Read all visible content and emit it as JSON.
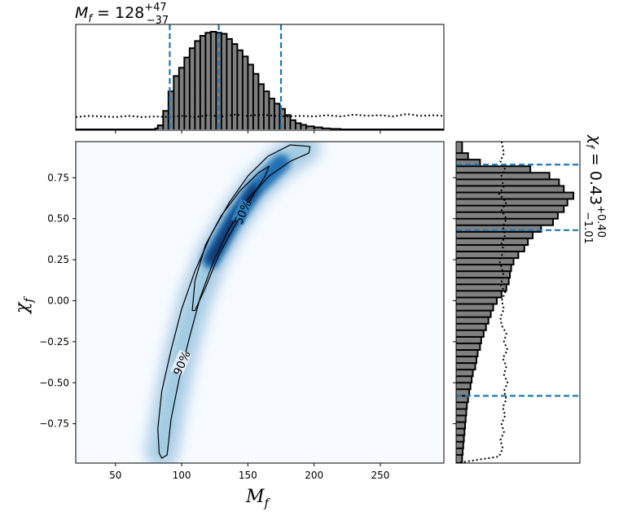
{
  "chart_data": [
    {
      "panel": "top-marginal",
      "type": "histogram",
      "title": {
        "symbol": "M",
        "sub": "f",
        "eq": " = 128",
        "sup": "+47",
        "low": "−37"
      },
      "xlim": [
        20,
        298
      ],
      "bins": [
        [
          80,
          82,
          0.01
        ],
        [
          82,
          86,
          0.04
        ],
        [
          86,
          90,
          0.18
        ],
        [
          90,
          94,
          0.37
        ],
        [
          94,
          98,
          0.52
        ],
        [
          98,
          102,
          0.6
        ],
        [
          102,
          106,
          0.7
        ],
        [
          106,
          110,
          0.79
        ],
        [
          110,
          114,
          0.86
        ],
        [
          114,
          118,
          0.91
        ],
        [
          118,
          122,
          0.94
        ],
        [
          122,
          126,
          0.95
        ],
        [
          126,
          130,
          0.94
        ],
        [
          130,
          134,
          0.93
        ],
        [
          134,
          138,
          0.88
        ],
        [
          138,
          142,
          0.83
        ],
        [
          142,
          146,
          0.77
        ],
        [
          146,
          150,
          0.71
        ],
        [
          150,
          154,
          0.63
        ],
        [
          154,
          158,
          0.54
        ],
        [
          158,
          162,
          0.44
        ],
        [
          162,
          166,
          0.37
        ],
        [
          166,
          170,
          0.3
        ],
        [
          170,
          174,
          0.25
        ],
        [
          174,
          178,
          0.2
        ],
        [
          178,
          182,
          0.14
        ],
        [
          182,
          186,
          0.09
        ],
        [
          186,
          190,
          0.06
        ],
        [
          190,
          194,
          0.045
        ],
        [
          194,
          200,
          0.03
        ],
        [
          200,
          206,
          0.02
        ],
        [
          206,
          212,
          0.01
        ],
        [
          212,
          220,
          0.005
        ]
      ],
      "prior": [
        [
          20,
          0.2
        ],
        [
          30,
          0.22
        ],
        [
          40,
          0.21
        ],
        [
          50,
          0.2
        ],
        [
          60,
          0.22
        ],
        [
          70,
          0.2
        ],
        [
          80,
          0.21
        ],
        [
          90,
          0.2
        ],
        [
          100,
          0.22
        ],
        [
          110,
          0.2
        ],
        [
          120,
          0.23
        ],
        [
          130,
          0.21
        ],
        [
          140,
          0.24
        ],
        [
          150,
          0.22
        ],
        [
          160,
          0.24
        ],
        [
          170,
          0.22
        ],
        [
          180,
          0.21
        ],
        [
          190,
          0.22
        ],
        [
          200,
          0.21
        ],
        [
          210,
          0.23
        ],
        [
          220,
          0.21
        ],
        [
          230,
          0.24
        ],
        [
          240,
          0.22
        ],
        [
          250,
          0.23
        ],
        [
          260,
          0.21
        ],
        [
          270,
          0.25
        ],
        [
          280,
          0.22
        ],
        [
          290,
          0.23
        ],
        [
          298,
          0.22
        ]
      ],
      "vlines": [
        91,
        128,
        175
      ],
      "line_color": "#1f77b4",
      "fill_color": "#808080"
    },
    {
      "panel": "joint",
      "type": "heatmap",
      "xlabel": {
        "symbol": "M",
        "sub": "f"
      },
      "ylabel": {
        "symbol": "χ",
        "sub": "f"
      },
      "xlim": [
        20,
        298
      ],
      "ylim": [
        -0.99,
        0.97
      ],
      "xticks": [
        50,
        100,
        150,
        200,
        250
      ],
      "yticks": [
        "−0.75",
        "−0.50",
        "−0.25",
        "0.00",
        "0.25",
        "0.50",
        "0.75"
      ],
      "ytick_values": [
        -0.75,
        -0.5,
        -0.25,
        0.0,
        0.25,
        0.5,
        0.75
      ],
      "colormap": "Blues",
      "ridge": [
        [
          85,
          -0.92
        ],
        [
          92,
          -0.6
        ],
        [
          100,
          -0.3
        ],
        [
          110,
          0.0
        ],
        [
          122,
          0.25
        ],
        [
          138,
          0.48
        ],
        [
          155,
          0.68
        ],
        [
          175,
          0.84
        ],
        [
          192,
          0.93
        ]
      ],
      "contours": [
        {
          "label": "90%",
          "label_at": [
            100,
            -0.38
          ],
          "points": [
            [
              83,
              -0.93
            ],
            [
              82,
              -0.78
            ],
            [
              85,
              -0.55
            ],
            [
              92,
              -0.3
            ],
            [
              100,
              -0.05
            ],
            [
              110,
              0.18
            ],
            [
              122,
              0.4
            ],
            [
              136,
              0.6
            ],
            [
              150,
              0.76
            ],
            [
              165,
              0.88
            ],
            [
              182,
              0.95
            ],
            [
              197,
              0.94
            ],
            [
              196,
              0.9
            ],
            [
              182,
              0.85
            ],
            [
              166,
              0.76
            ],
            [
              150,
              0.62
            ],
            [
              136,
              0.44
            ],
            [
              124,
              0.24
            ],
            [
              114,
              0.02
            ],
            [
              106,
              -0.22
            ],
            [
              98,
              -0.48
            ],
            [
              92,
              -0.72
            ],
            [
              89,
              -0.94
            ],
            [
              85,
              -0.96
            ]
          ]
        },
        {
          "label": "50%",
          "label_at": [
            146,
            0.54
          ],
          "points": [
            [
              108,
              -0.06
            ],
            [
              110,
              0.12
            ],
            [
              118,
              0.34
            ],
            [
              130,
              0.52
            ],
            [
              144,
              0.67
            ],
            [
              158,
              0.78
            ],
            [
              166,
              0.82
            ],
            [
              163,
              0.76
            ],
            [
              153,
              0.63
            ],
            [
              141,
              0.47
            ],
            [
              128,
              0.28
            ],
            [
              118,
              0.08
            ],
            [
              110,
              -0.06
            ]
          ]
        }
      ]
    },
    {
      "panel": "right-marginal",
      "type": "histogram",
      "title": {
        "symbol": "χ",
        "sub": "f",
        "eq": " = 0.43",
        "sup": "+0.40",
        "low": "−1.01"
      },
      "ylim": [
        -0.99,
        0.97
      ],
      "bins": [
        [
          0.9,
          0.97,
          0.05
        ],
        [
          0.86,
          0.9,
          0.1
        ],
        [
          0.82,
          0.86,
          0.2
        ],
        [
          0.78,
          0.82,
          0.62
        ],
        [
          0.74,
          0.78,
          0.78
        ],
        [
          0.7,
          0.74,
          0.86
        ],
        [
          0.66,
          0.7,
          0.9
        ],
        [
          0.62,
          0.66,
          0.98
        ],
        [
          0.58,
          0.62,
          0.93
        ],
        [
          0.54,
          0.58,
          0.9
        ],
        [
          0.5,
          0.54,
          0.85
        ],
        [
          0.46,
          0.5,
          0.81
        ],
        [
          0.42,
          0.46,
          0.71
        ],
        [
          0.38,
          0.42,
          0.64
        ],
        [
          0.34,
          0.38,
          0.6
        ],
        [
          0.3,
          0.34,
          0.57
        ],
        [
          0.26,
          0.3,
          0.52
        ],
        [
          0.22,
          0.26,
          0.48
        ],
        [
          0.18,
          0.22,
          0.46
        ],
        [
          0.14,
          0.18,
          0.45
        ],
        [
          0.1,
          0.14,
          0.44
        ],
        [
          0.06,
          0.1,
          0.42
        ],
        [
          0.02,
          0.06,
          0.38
        ],
        [
          -0.02,
          0.02,
          0.34
        ],
        [
          -0.06,
          -0.02,
          0.31
        ],
        [
          -0.1,
          -0.06,
          0.29
        ],
        [
          -0.14,
          -0.1,
          0.27
        ],
        [
          -0.18,
          -0.14,
          0.25
        ],
        [
          -0.22,
          -0.18,
          0.23
        ],
        [
          -0.26,
          -0.22,
          0.21
        ],
        [
          -0.3,
          -0.26,
          0.2
        ],
        [
          -0.34,
          -0.3,
          0.18
        ],
        [
          -0.38,
          -0.34,
          0.17
        ],
        [
          -0.42,
          -0.38,
          0.16
        ],
        [
          -0.46,
          -0.42,
          0.14
        ],
        [
          -0.5,
          -0.46,
          0.13
        ],
        [
          -0.54,
          -0.5,
          0.12
        ],
        [
          -0.58,
          -0.54,
          0.11
        ],
        [
          -0.62,
          -0.58,
          0.1
        ],
        [
          -0.66,
          -0.62,
          0.09
        ],
        [
          -0.7,
          -0.66,
          0.085
        ],
        [
          -0.74,
          -0.7,
          0.08
        ],
        [
          -0.78,
          -0.74,
          0.075
        ],
        [
          -0.82,
          -0.78,
          0.07
        ],
        [
          -0.86,
          -0.82,
          0.065
        ],
        [
          -0.9,
          -0.86,
          0.06
        ],
        [
          -0.94,
          -0.9,
          0.055
        ],
        [
          -0.99,
          -0.94,
          0.05
        ]
      ],
      "prior": [
        [
          0.97,
          0.38
        ],
        [
          0.9,
          0.4
        ],
        [
          0.85,
          0.37
        ],
        [
          0.8,
          0.41
        ],
        [
          0.75,
          0.37
        ],
        [
          0.7,
          0.4
        ],
        [
          0.65,
          0.36
        ],
        [
          0.6,
          0.42
        ],
        [
          0.55,
          0.38
        ],
        [
          0.5,
          0.42
        ],
        [
          0.45,
          0.39
        ],
        [
          0.4,
          0.41
        ],
        [
          0.35,
          0.38
        ],
        [
          0.3,
          0.4
        ],
        [
          0.25,
          0.36
        ],
        [
          0.2,
          0.38
        ],
        [
          0.15,
          0.4
        ],
        [
          0.1,
          0.37
        ],
        [
          0.05,
          0.41
        ],
        [
          0.0,
          0.38
        ],
        [
          -0.05,
          0.4
        ],
        [
          -0.1,
          0.37
        ],
        [
          -0.15,
          0.38
        ],
        [
          -0.2,
          0.42
        ],
        [
          -0.25,
          0.4
        ],
        [
          -0.3,
          0.43
        ],
        [
          -0.35,
          0.39
        ],
        [
          -0.4,
          0.42
        ],
        [
          -0.45,
          0.4
        ],
        [
          -0.5,
          0.43
        ],
        [
          -0.55,
          0.4
        ],
        [
          -0.6,
          0.42
        ],
        [
          -0.65,
          0.39
        ],
        [
          -0.7,
          0.41
        ],
        [
          -0.75,
          0.38
        ],
        [
          -0.8,
          0.4
        ],
        [
          -0.85,
          0.37
        ],
        [
          -0.9,
          0.39
        ],
        [
          -0.95,
          0.36
        ],
        [
          -0.99,
          0.0
        ]
      ],
      "hlines": [
        0.83,
        0.43,
        -0.58
      ],
      "line_color": "#1f77b4",
      "fill_color": "#808080"
    }
  ]
}
